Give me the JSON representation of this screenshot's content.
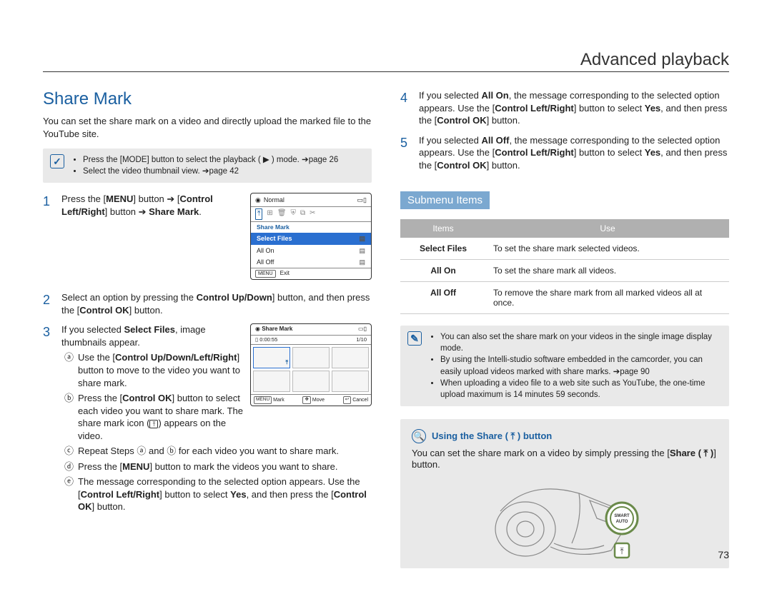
{
  "chapter_title": "Advanced playback",
  "page_number": "73",
  "section_title": "Share Mark",
  "section_intro": "You can set the share mark on a video and directly upload the marked file to the YouTube site.",
  "prereq": {
    "icon_glyph": "✓",
    "items": [
      "Press the [MODE] button to select the playback ( ▶ ) mode. ➔page 26",
      "Select the video thumbnail view. ➔page 42"
    ]
  },
  "steps_left": [
    {
      "num": "1",
      "html": "Press the [<b>MENU</b>] button ➔ [<b>Control Left/Right</b>] button ➔ <b>Share Mark</b>."
    },
    {
      "num": "2",
      "html": "Select an option by pressing the <b>Control Up/Down</b>] button, and then press the [<b>Control OK</b>] button."
    },
    {
      "num": "3",
      "html": "If you selected <b>Select Files</b>, image thumbnails appear.",
      "sub": [
        {
          "c": "ⓐ",
          "html": "Use the [<b>Control Up/Down/Left/Right</b>] button to move to the video you want to share mark."
        },
        {
          "c": "ⓑ",
          "html": "Press the [<b>Control OK</b>] button to select each video you want to share mark. The share mark icon (<span class='share-u'>⤒</span>) appears on the video."
        },
        {
          "c": "ⓒ",
          "html": "Repeat Steps ⓐ and ⓑ for each video you want to share mark."
        },
        {
          "c": "ⓓ",
          "html": "Press the [<b>MENU</b>] button to mark the videos you want to share."
        },
        {
          "c": "ⓔ",
          "html": "The message corresponding to the selected option appears. Use the [<b>Control Left/Right</b>] button to select <b>Yes</b>, and then press the [<b>Control OK</b>] button."
        }
      ]
    }
  ],
  "steps_right": [
    {
      "num": "4",
      "html": "If you selected <b>All On</b>, the message corresponding to the selected option appears. Use the [<b>Control Left/Right</b>] button to select <b>Yes</b>, and then press the [<b>Control OK</b>] button."
    },
    {
      "num": "5",
      "html": "If you selected <b>All Off</b>, the message corresponding to the selected option appears. Use the [<b>Control Left/Right</b>] button to select <b>Yes</b>, and then press the [<b>Control OK</b>] button."
    }
  ],
  "submenu_heading": "Submenu Items",
  "submenu_table": {
    "columns": [
      "Items",
      "Use"
    ],
    "rows": [
      [
        "Select Files",
        "To set the share mark selected videos."
      ],
      [
        "All On",
        "To set the share mark all videos."
      ],
      [
        "All Off",
        "To remove the share mark from all marked videos all at once."
      ]
    ]
  },
  "notes": {
    "icon_glyph": "✎",
    "items": [
      "You can also set the share mark on your videos in the single image display mode.",
      "By using the Intelli-studio software embedded in the camcorder, you can easily upload videos marked with share marks. ➔page 90",
      "When uploading a video file to a web site such as YouTube, the one-time upload maximum is 14 minutes 59 seconds."
    ]
  },
  "using_box": {
    "title": "Using the Share ( ⤒ ) button",
    "body_html": "You can set the share mark on a video by simply pressing the [<b>Share ( ⤒ )</b>] button.",
    "smart_auto_label": "SMART AUTO",
    "share_icon_label": "⤒"
  },
  "menu_mock": {
    "mode_label": "Normal",
    "group_title": "Share Mark",
    "items": [
      "Select Files",
      "All On",
      "All Off"
    ],
    "selected_index": 0,
    "footer": {
      "menu": "MENU",
      "exit": "Exit"
    }
  },
  "thumb_mock": {
    "title": "Share Mark",
    "time": "0:00:55",
    "count": "1/10",
    "footer": [
      {
        "btn": "MENU",
        "label": "Mark"
      },
      {
        "btn": "✥",
        "label": "Move"
      },
      {
        "btn": "↩",
        "label": "Cancel"
      }
    ]
  },
  "colors": {
    "accent": "#1a5fa0",
    "submenu_bg": "#7ba8d0",
    "table_header_bg": "#b0b0b0",
    "box_bg": "#e9e9e9",
    "menu_selected": "#2a6fd0"
  }
}
